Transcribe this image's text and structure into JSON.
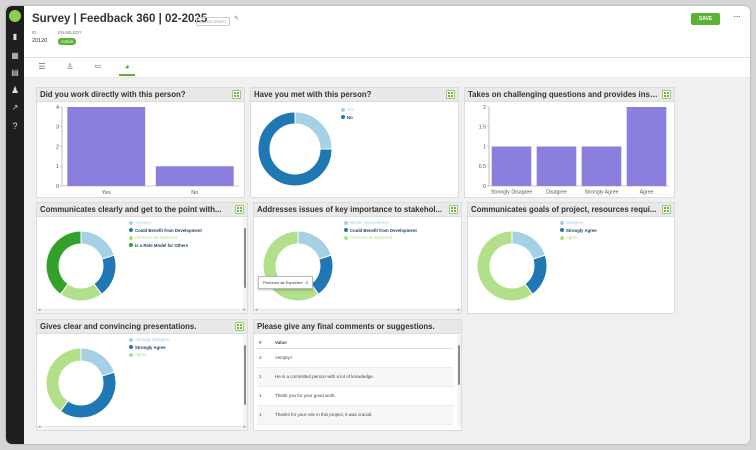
{
  "header": {
    "title": "Survey | Feedback 360 | 02-2025",
    "draft_badge": "SAVED DRAFT",
    "id_label": "ID",
    "id_value": "20120",
    "enabled_label": "ENABLED?",
    "enabled_value": "Active",
    "save_label": "SAVE",
    "more_label": "···"
  },
  "colors": {
    "accent": "#5db135",
    "bar": "#8a7fdc",
    "light_blue": "#a6d0e4",
    "dark_blue": "#1f78b4",
    "light_green": "#b2df8a",
    "dark_green": "#33a02c"
  },
  "icons": {
    "rail": [
      "bar-chart-icon",
      "dashboard-icon",
      "list-icon",
      "users-icon",
      "export-icon",
      "help-icon"
    ]
  },
  "cards": {
    "c1": {
      "title": "Did you work directly with this person?"
    },
    "c2": {
      "title": "Have you met with this person?"
    },
    "c3": {
      "title": "Takes on challenging questions and provides inst..."
    },
    "c4": {
      "title": "Communicates clearly and get to the point with..."
    },
    "c5": {
      "title": "Addresses issues of key importance to stakehol..."
    },
    "c6": {
      "title": "Communicates goals of project, resources requi..."
    },
    "c7": {
      "title": "Gives clear and convincing presentations."
    },
    "c8": {
      "title": "Please give any final comments or suggestions."
    }
  },
  "chart_data": [
    {
      "type": "bar",
      "categories": [
        "Yes",
        "No"
      ],
      "values": [
        4,
        1
      ],
      "ylim": [
        0,
        4
      ],
      "yticks": [
        "0",
        "1",
        "2",
        "3",
        "4"
      ]
    },
    {
      "type": "pie",
      "labels": [
        "Yes",
        "No"
      ],
      "values": [
        1,
        3
      ]
    },
    {
      "type": "bar",
      "categories": [
        "Strongly Disagree",
        "Disagree",
        "Strongly Agree",
        "Agree"
      ],
      "values": [
        1,
        1,
        1,
        2
      ],
      "ylim": [
        0,
        2
      ],
      "yticks": [
        "0",
        "0.5",
        "1",
        "1.5",
        "2"
      ]
    },
    {
      "type": "pie",
      "labels": [
        "<empty>",
        "Could Benefit from Development",
        "Performs as Expected",
        "Is a Role Model for Others"
      ],
      "values": [
        1,
        1,
        1,
        2
      ]
    },
    {
      "type": "pie",
      "labels": [
        "Needs Improvement",
        "Could Benefit from Development",
        "Performs as Expected"
      ],
      "values": [
        1,
        1,
        3
      ],
      "tooltip": "Performs as Expected : 3"
    },
    {
      "type": "pie",
      "labels": [
        "Disagree",
        "Strongly Agree",
        "Agree"
      ],
      "values": [
        1,
        1,
        3
      ]
    },
    {
      "type": "pie",
      "labels": [
        "Strongly Disagree",
        "Strongly Agree",
        "Agree"
      ],
      "values": [
        1,
        2,
        2
      ]
    },
    {
      "type": "table",
      "columns": [
        "#",
        "Value"
      ],
      "rows": [
        [
          "2",
          "<empty>"
        ],
        [
          "1",
          "He is a committed person with a lot of knowledge."
        ],
        [
          "1",
          "Thank you for your good work."
        ],
        [
          "1",
          "Thanks for your role in this project, it was crucial."
        ]
      ]
    }
  ]
}
